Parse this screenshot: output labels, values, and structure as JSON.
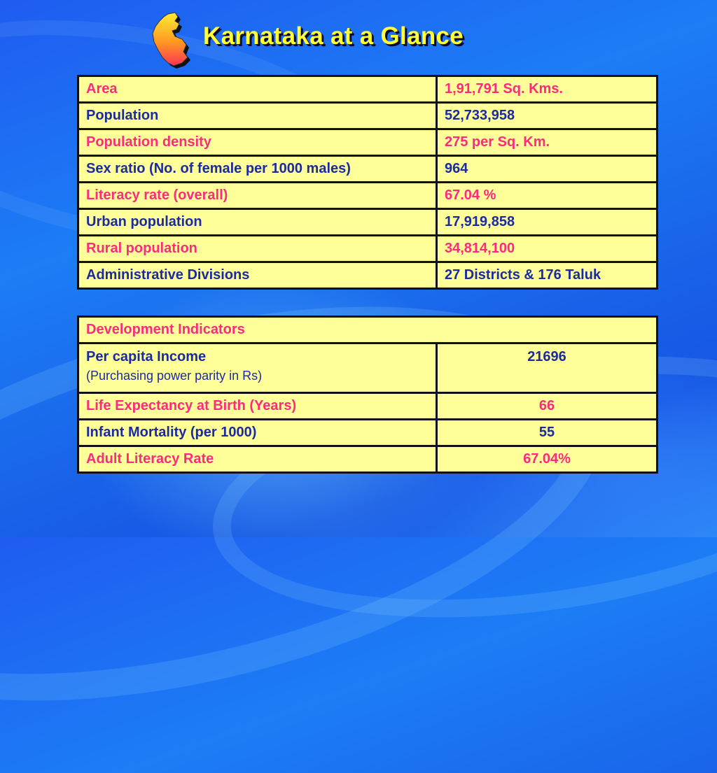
{
  "title": "Karnataka at a Glance",
  "logo_icon": "karnataka-map-icon",
  "colors": {
    "title": "#ffff33",
    "cell_bg": "#ffff99",
    "pink": "#ff2a80",
    "navy": "#1c2aa0",
    "background": "#1c7df5"
  },
  "state_facts": {
    "rows": [
      {
        "label": "Area",
        "value": "1,91,791 Sq. Kms."
      },
      {
        "label": "Population",
        "value": "52,733,958"
      },
      {
        "label": "Population density",
        "value": "275 per Sq. Km."
      },
      {
        "label": "Sex ratio (No. of female per 1000 males)",
        "value": "964"
      },
      {
        "label": "Literacy rate (overall)",
        "value": "67.04 %"
      },
      {
        "label": "Urban population",
        "value": "17,919,858"
      },
      {
        "label": "Rural population",
        "value": "34,814,100"
      },
      {
        "label": "Administrative Divisions",
        "value": "27 Districts & 176 Taluk"
      }
    ]
  },
  "development": {
    "heading": "Development Indicators",
    "rows": [
      {
        "label": "Per capita Income",
        "sublabel": "(Purchasing power parity in Rs)",
        "value": "21696"
      },
      {
        "label": "Life Expectancy at Birth (Years)",
        "value": "66"
      },
      {
        "label": "Infant Mortality (per 1000)",
        "value": "55"
      },
      {
        "label": "Adult Literacy Rate",
        "value": "67.04%"
      }
    ]
  }
}
